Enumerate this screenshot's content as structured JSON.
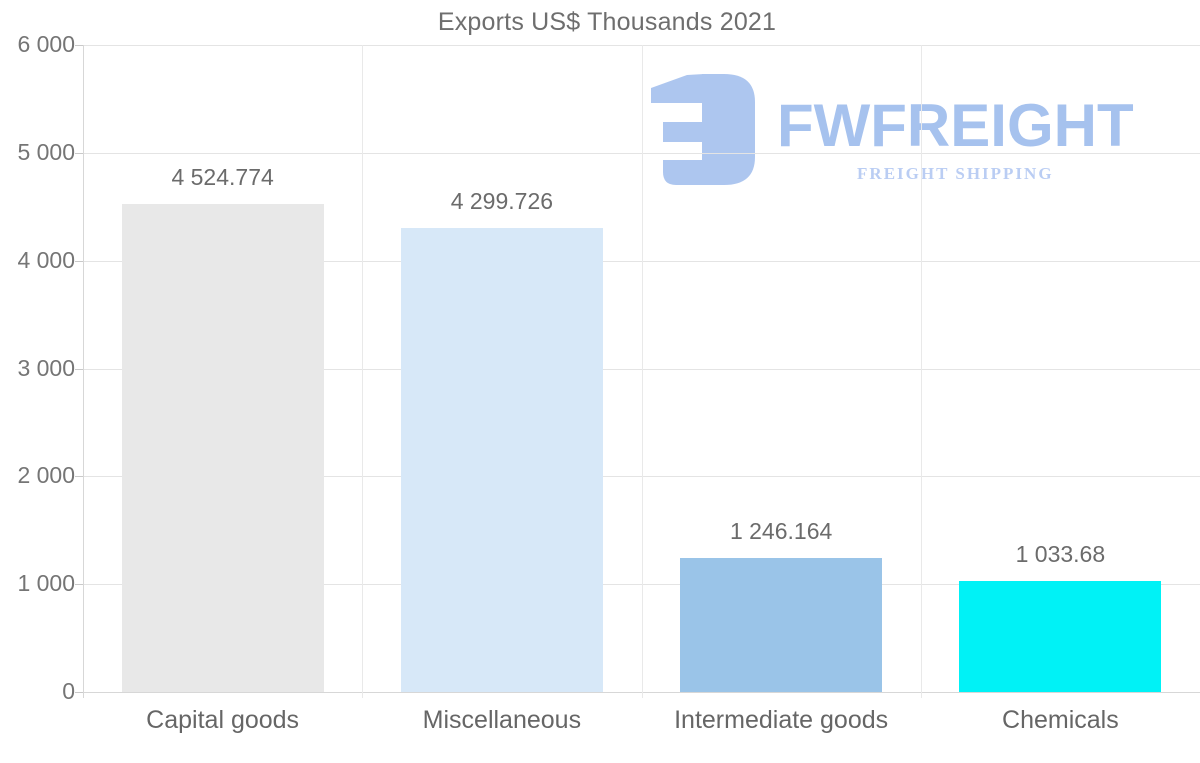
{
  "title": "Exports US$ Thousands 2021",
  "logo": {
    "brand": "FWFREIGHT",
    "tagline": "FREIGHT SHIPPING",
    "mark_color": "#a9c3ef",
    "brand_color": "#a2bfee",
    "tagline_color": "#b7cbf3"
  },
  "chart_data": {
    "type": "bar",
    "title": "Exports US$ Thousands 2021",
    "categories": [
      "Capital goods",
      "Miscellaneous",
      "Intermediate goods",
      "Chemicals"
    ],
    "values": [
      4524.774,
      4299.726,
      1246.164,
      1033.68
    ],
    "value_labels": [
      "4 524.774",
      "4 299.726",
      "1 246.164",
      "1 033.68"
    ],
    "bar_colors": [
      "#e8e8e8",
      "#d7e8f8",
      "#9ac4e8",
      "#00f2f6"
    ],
    "xlabel": "",
    "ylabel": "",
    "ylim": [
      0,
      6000
    ],
    "ytick_step": 1000,
    "ytick_labels": [
      "0",
      "1 000",
      "2 000",
      "3 000",
      "4 000",
      "5 000",
      "6 000"
    ],
    "grid": "horizontal gridlines + vertical category separators",
    "legend": "none"
  },
  "colors": {
    "grid_h": "#e4e4e4",
    "grid_v": "#e9e9e9",
    "axis": "#d7d7d7",
    "tick": "#c9c9c9",
    "label_gray": "#6e6e6e"
  }
}
